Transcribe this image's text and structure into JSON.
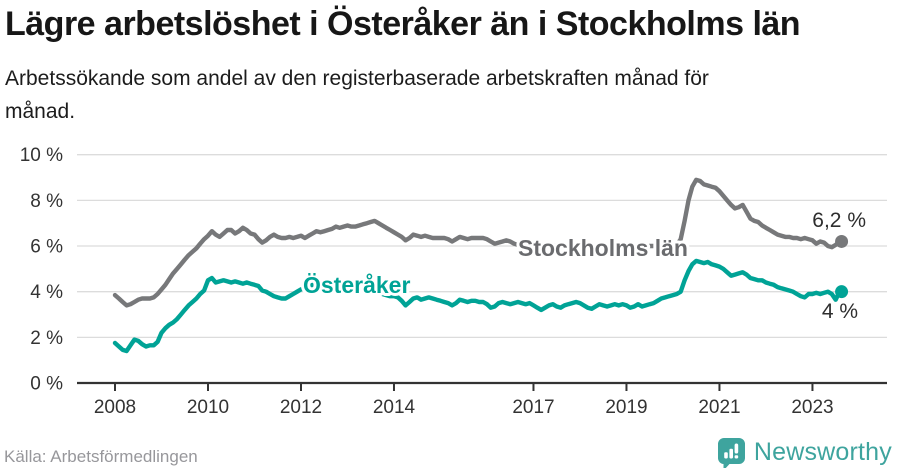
{
  "header": {
    "title": "Lägre arbetslöshet i Österåker än i Stockholms län",
    "subtitle": "Arbetssökande som andel av den registerbaserade arbetskraften månad för månad."
  },
  "footer": {
    "source": "Källa: Arbetsförmedlingen",
    "brand_name": "Newsworthy",
    "brand_icon": "bar-chart-speech-bubble-icon"
  },
  "colors": {
    "stockholm_line": "#77787a",
    "stockholm_label": "#6a6b6e",
    "osteraker_line": "#00a396",
    "axis": "#333333",
    "gridline": "#dcdcdc",
    "tick_label": "#333333",
    "end_label": "#2e2e2e",
    "brand_teal": "#3ea49e"
  },
  "chart_data": {
    "type": "line",
    "title": "Lägre arbetslöshet i Österåker än i Stockholms län",
    "xlabel": "",
    "ylabel": "Arbetssökande som andel av den registerbaserade arbetskraften",
    "x_interval": "monthly",
    "x_start": "2008-01",
    "x_end": "2023-08",
    "ylim": [
      0,
      10.5
    ],
    "grid": "horizontal",
    "legend_position": "inline-labels",
    "ytick_values": [
      0,
      2,
      4,
      6,
      8,
      10
    ],
    "yticks": [
      "0 %",
      "2 %",
      "4 %",
      "6 %",
      "8 %",
      "10 %"
    ],
    "xticks": [
      2008,
      2010,
      2012,
      2014,
      2017,
      2019,
      2021,
      2023
    ],
    "series": [
      {
        "name": "Stockholms län",
        "end_label": "6,2 %",
        "end_value": 6.2,
        "values": [
          3.85,
          3.7,
          3.55,
          3.4,
          3.45,
          3.55,
          3.65,
          3.7,
          3.7,
          3.7,
          3.75,
          3.9,
          4.1,
          4.3,
          4.55,
          4.8,
          5.0,
          5.2,
          5.4,
          5.6,
          5.75,
          5.9,
          6.1,
          6.3,
          6.45,
          6.65,
          6.5,
          6.4,
          6.55,
          6.7,
          6.7,
          6.55,
          6.65,
          6.8,
          6.7,
          6.55,
          6.5,
          6.3,
          6.15,
          6.25,
          6.4,
          6.5,
          6.4,
          6.35,
          6.35,
          6.4,
          6.35,
          6.4,
          6.45,
          6.35,
          6.45,
          6.55,
          6.65,
          6.6,
          6.65,
          6.7,
          6.75,
          6.85,
          6.8,
          6.85,
          6.9,
          6.85,
          6.85,
          6.9,
          6.95,
          7.0,
          7.05,
          7.1,
          7.0,
          6.9,
          6.8,
          6.7,
          6.6,
          6.5,
          6.4,
          6.25,
          6.35,
          6.5,
          6.45,
          6.4,
          6.45,
          6.4,
          6.35,
          6.35,
          6.35,
          6.35,
          6.3,
          6.2,
          6.3,
          6.4,
          6.35,
          6.3,
          6.35,
          6.35,
          6.35,
          6.35,
          6.3,
          6.2,
          6.1,
          6.15,
          6.2,
          6.25,
          6.2,
          6.1,
          6.05,
          6.0,
          6.0,
          6.05,
          6.1,
          6.05,
          6.0,
          5.95,
          6.0,
          6.05,
          6.0,
          5.95,
          6.0,
          6.05,
          6.0,
          6.0,
          5.95,
          5.9,
          5.85,
          5.8,
          5.85,
          5.9,
          5.85,
          5.8,
          5.85,
          5.9,
          5.9,
          5.95,
          5.95,
          5.9,
          5.85,
          5.9,
          5.95,
          6.0,
          6.0,
          6.0,
          6.05,
          6.05,
          6.0,
          6.05,
          6.05,
          6.05,
          6.3,
          7.1,
          8.0,
          8.6,
          8.9,
          8.85,
          8.7,
          8.65,
          8.6,
          8.55,
          8.4,
          8.2,
          8.0,
          7.8,
          7.65,
          7.7,
          7.8,
          7.5,
          7.2,
          7.1,
          7.05,
          6.9,
          6.8,
          6.7,
          6.6,
          6.5,
          6.45,
          6.4,
          6.4,
          6.35,
          6.35,
          6.3,
          6.35,
          6.3,
          6.25,
          6.1,
          6.2,
          6.15,
          6.0,
          5.95,
          6.05,
          6.2
        ]
      },
      {
        "name": "Österåker",
        "end_label": "4 %",
        "end_value": 4.0,
        "values": [
          1.75,
          1.6,
          1.45,
          1.4,
          1.65,
          1.9,
          1.85,
          1.7,
          1.6,
          1.65,
          1.65,
          1.8,
          2.2,
          2.4,
          2.55,
          2.65,
          2.8,
          3.0,
          3.2,
          3.4,
          3.55,
          3.7,
          3.9,
          4.05,
          4.5,
          4.6,
          4.4,
          4.45,
          4.5,
          4.45,
          4.4,
          4.45,
          4.4,
          4.35,
          4.4,
          4.35,
          4.3,
          4.25,
          4.05,
          4.0,
          3.9,
          3.8,
          3.75,
          3.7,
          3.7,
          3.8,
          3.9,
          4.0,
          4.1,
          4.15,
          4.2,
          4.3,
          4.35,
          4.3,
          4.25,
          4.3,
          4.35,
          4.4,
          4.35,
          4.4,
          4.45,
          4.4,
          4.35,
          4.3,
          4.2,
          4.15,
          4.1,
          4.0,
          3.95,
          3.9,
          3.85,
          3.8,
          3.8,
          3.75,
          3.6,
          3.4,
          3.55,
          3.7,
          3.75,
          3.65,
          3.7,
          3.75,
          3.7,
          3.65,
          3.6,
          3.55,
          3.5,
          3.4,
          3.5,
          3.65,
          3.6,
          3.55,
          3.6,
          3.6,
          3.55,
          3.55,
          3.45,
          3.3,
          3.35,
          3.5,
          3.55,
          3.5,
          3.45,
          3.5,
          3.55,
          3.5,
          3.45,
          3.5,
          3.4,
          3.3,
          3.2,
          3.3,
          3.4,
          3.45,
          3.35,
          3.3,
          3.4,
          3.45,
          3.5,
          3.55,
          3.5,
          3.4,
          3.3,
          3.25,
          3.35,
          3.45,
          3.4,
          3.35,
          3.4,
          3.45,
          3.4,
          3.45,
          3.4,
          3.3,
          3.35,
          3.45,
          3.35,
          3.4,
          3.45,
          3.5,
          3.6,
          3.7,
          3.75,
          3.8,
          3.85,
          3.9,
          4.0,
          4.5,
          4.9,
          5.2,
          5.35,
          5.3,
          5.25,
          5.3,
          5.2,
          5.15,
          5.1,
          5.0,
          4.85,
          4.7,
          4.75,
          4.8,
          4.85,
          4.75,
          4.6,
          4.55,
          4.5,
          4.5,
          4.4,
          4.35,
          4.3,
          4.2,
          4.15,
          4.1,
          4.05,
          4.0,
          3.9,
          3.8,
          3.75,
          3.9,
          3.9,
          3.95,
          3.9,
          3.95,
          4.0,
          3.9,
          3.65,
          4.0
        ]
      }
    ]
  }
}
